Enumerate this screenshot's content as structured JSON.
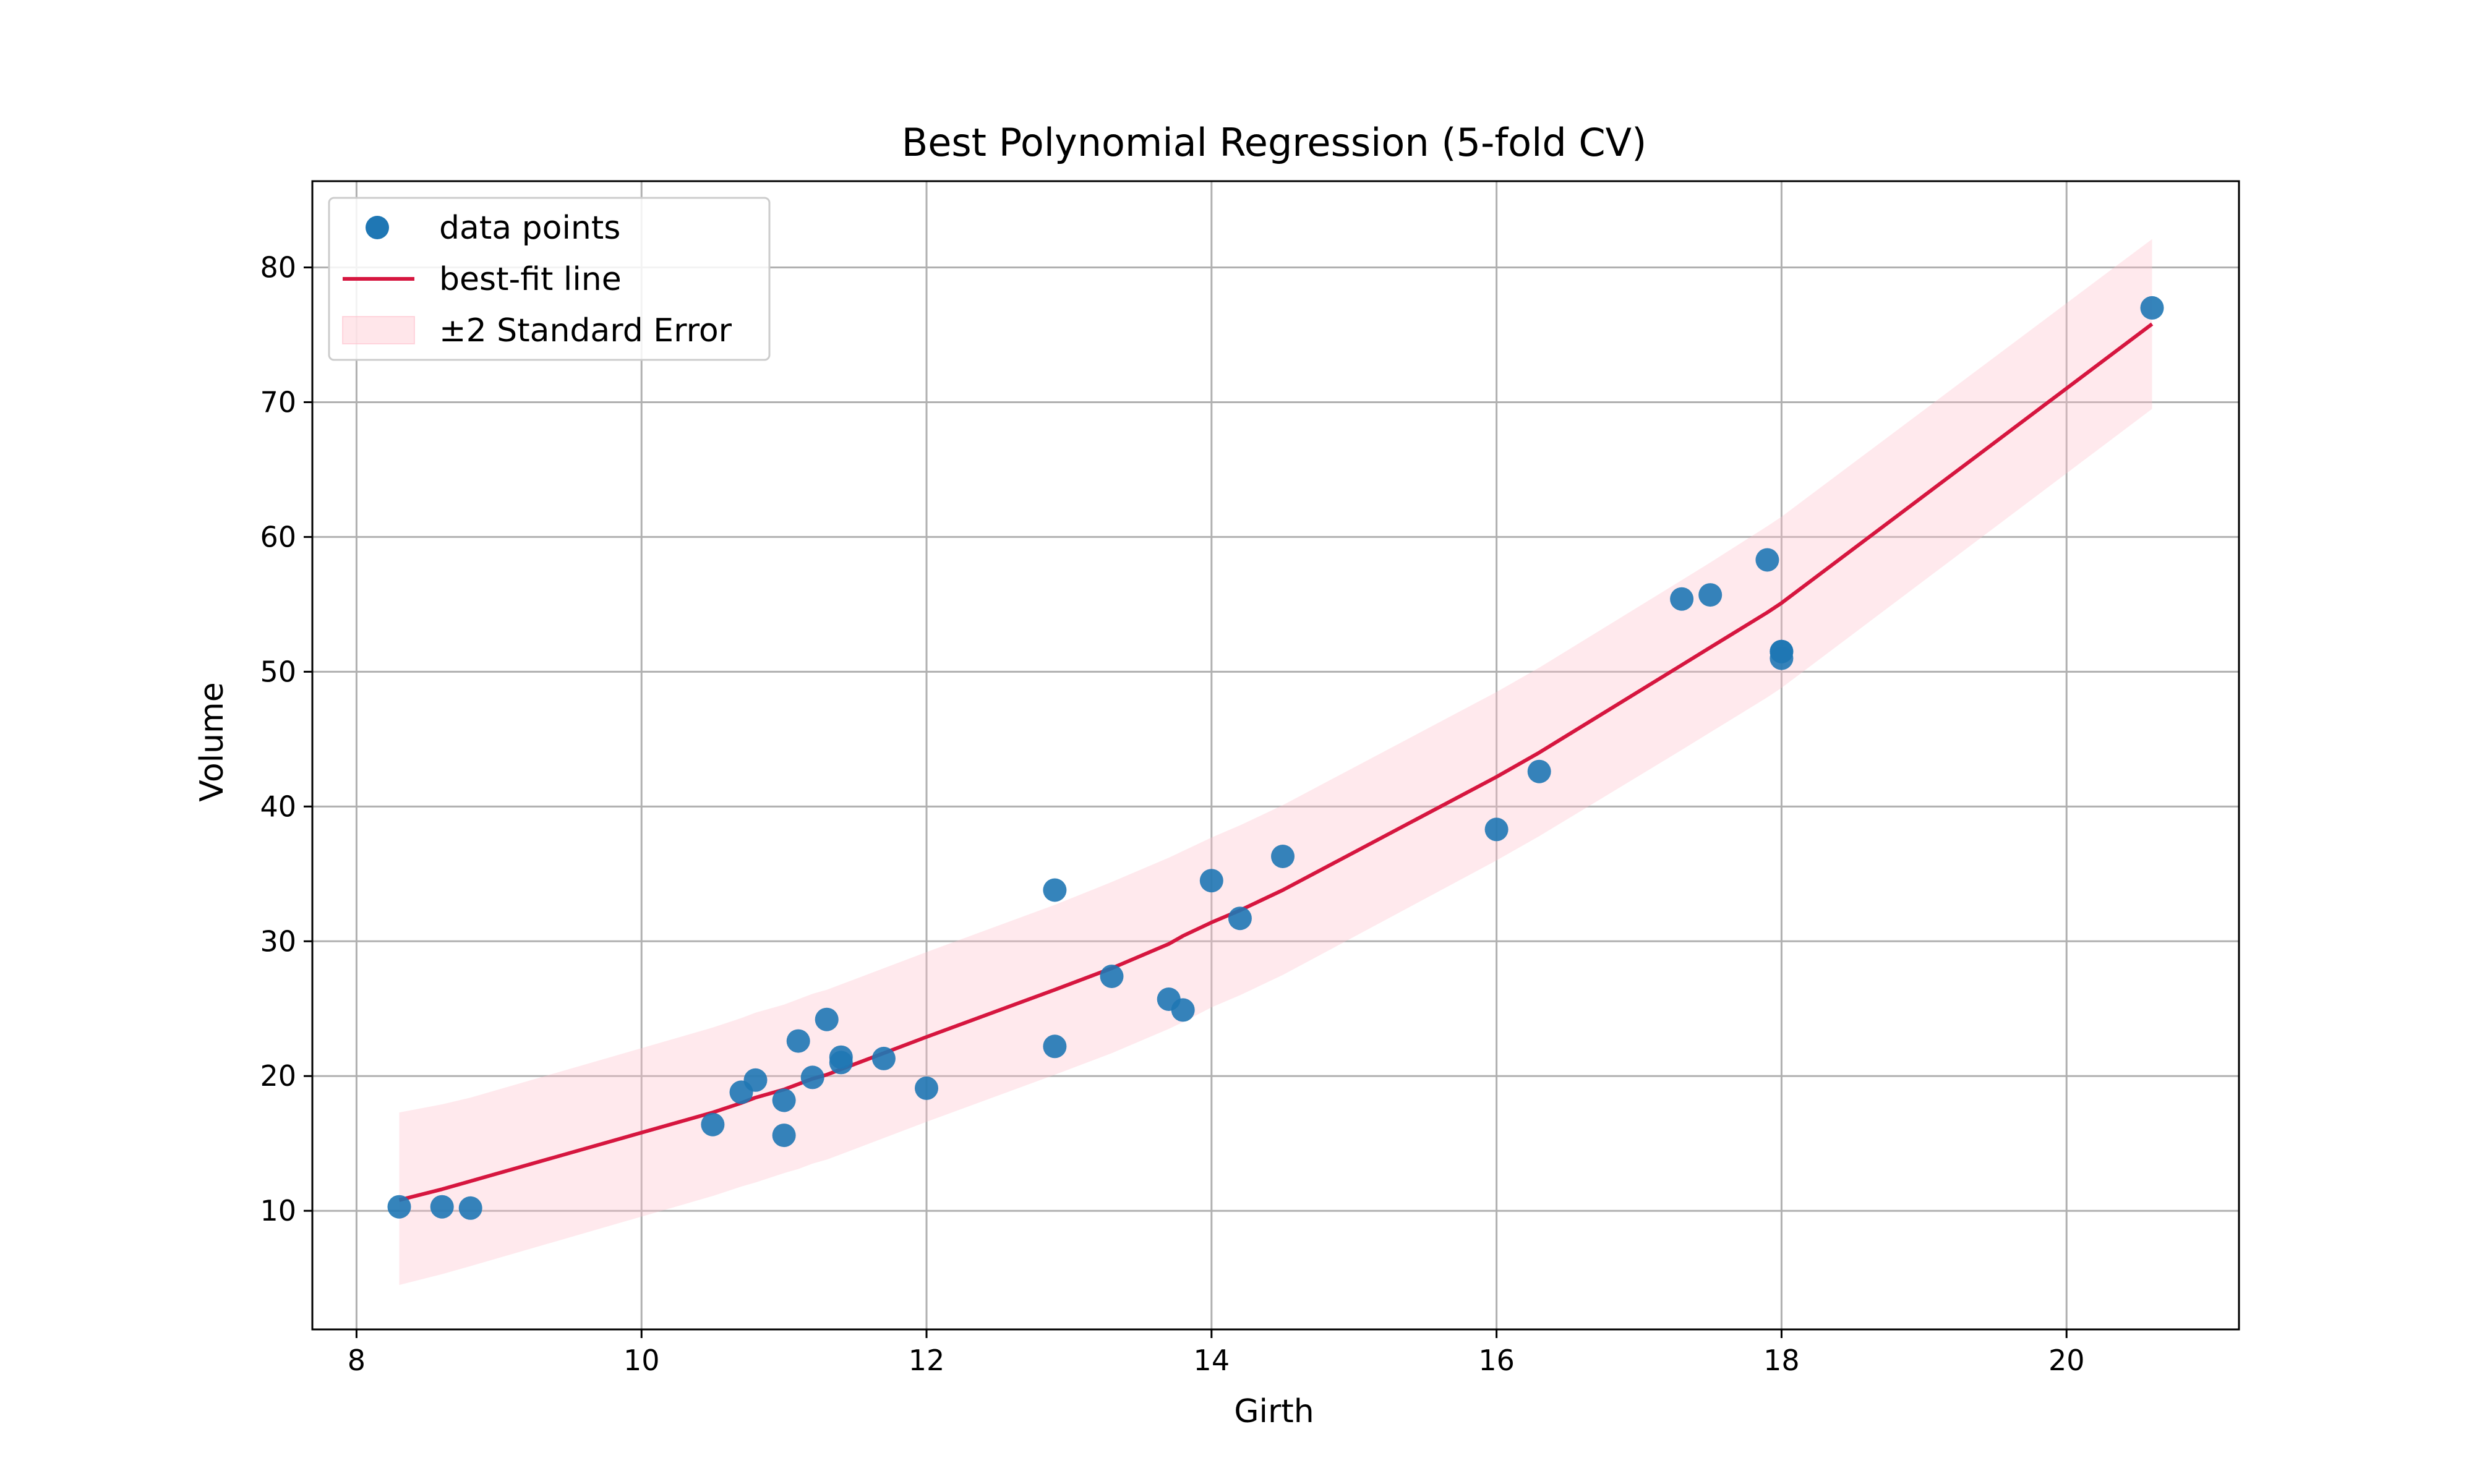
{
  "chart_data": {
    "type": "scatter",
    "title": "Best Polynomial Regression (5-fold CV)",
    "xlabel": "Girth",
    "ylabel": "Volume",
    "xlim": [
      7.69,
      21.21
    ],
    "ylim": [
      1.2,
      86.4
    ],
    "xticks": [
      8,
      10,
      12,
      14,
      16,
      18,
      20
    ],
    "yticks": [
      10,
      20,
      30,
      40,
      50,
      60,
      70,
      80
    ],
    "grid": true,
    "legend_position": "top-left",
    "legend": [
      {
        "label": "data points",
        "kind": "marker",
        "color": "#1f77b4"
      },
      {
        "label": "best-fit line",
        "kind": "line",
        "color": "#d6163f"
      },
      {
        "label": "±2 Standard Error",
        "kind": "band",
        "color": "#ffc0cb"
      }
    ],
    "series": [
      {
        "name": "data points",
        "kind": "scatter",
        "color": "#1f77b4",
        "points": [
          [
            8.3,
            10.3
          ],
          [
            8.6,
            10.3
          ],
          [
            8.8,
            10.2
          ],
          [
            10.5,
            16.4
          ],
          [
            10.7,
            18.8
          ],
          [
            10.8,
            19.7
          ],
          [
            11.0,
            15.6
          ],
          [
            11.0,
            18.2
          ],
          [
            11.1,
            22.6
          ],
          [
            11.2,
            19.9
          ],
          [
            11.3,
            24.2
          ],
          [
            11.4,
            21.0
          ],
          [
            11.4,
            21.4
          ],
          [
            11.7,
            21.3
          ],
          [
            12.0,
            19.1
          ],
          [
            12.9,
            22.2
          ],
          [
            12.9,
            33.8
          ],
          [
            13.3,
            27.4
          ],
          [
            13.7,
            25.7
          ],
          [
            13.8,
            24.9
          ],
          [
            14.0,
            34.5
          ],
          [
            14.2,
            31.7
          ],
          [
            14.5,
            36.3
          ],
          [
            16.0,
            38.3
          ],
          [
            16.3,
            42.6
          ],
          [
            17.3,
            55.4
          ],
          [
            17.5,
            55.7
          ],
          [
            17.9,
            58.3
          ],
          [
            18.0,
            51.5
          ],
          [
            18.0,
            51.0
          ],
          [
            18.0,
            51.5
          ],
          [
            20.6,
            77.0
          ]
        ]
      },
      {
        "name": "best-fit line",
        "kind": "line",
        "color": "#d6163f",
        "x": [
          8.3,
          8.6,
          8.8,
          10.5,
          10.7,
          10.8,
          11.0,
          11.1,
          11.2,
          11.3,
          11.4,
          11.7,
          12.0,
          12.9,
          13.3,
          13.7,
          13.8,
          14.0,
          14.2,
          14.5,
          16.0,
          16.3,
          17.3,
          17.5,
          17.9,
          18.0,
          20.6
        ],
        "y": [
          10.8,
          11.6,
          12.2,
          17.3,
          18.0,
          18.4,
          19.0,
          19.4,
          19.8,
          20.1,
          20.5,
          21.7,
          22.9,
          26.4,
          28.0,
          29.8,
          30.4,
          31.4,
          32.3,
          33.8,
          42.2,
          44.0,
          50.5,
          51.8,
          54.4,
          55.1,
          75.8
        ]
      },
      {
        "name": "±2 Standard Error",
        "kind": "band",
        "color": "#ffc0cb",
        "x": [
          8.3,
          8.6,
          8.8,
          10.5,
          10.7,
          10.8,
          11.0,
          11.1,
          11.2,
          11.3,
          11.4,
          11.7,
          12.0,
          12.9,
          13.3,
          13.7,
          13.8,
          14.0,
          14.2,
          14.5,
          16.0,
          16.3,
          17.3,
          17.5,
          17.9,
          18.0,
          20.6
        ],
        "lower": [
          4.5,
          5.3,
          5.9,
          11.1,
          11.8,
          12.1,
          12.8,
          13.1,
          13.5,
          13.8,
          14.2,
          15.4,
          16.6,
          20.1,
          21.7,
          23.5,
          24.0,
          25.1,
          26.0,
          27.5,
          36.0,
          37.8,
          44.2,
          45.5,
          48.1,
          48.8,
          69.5
        ],
        "upper": [
          17.3,
          17.9,
          18.4,
          23.6,
          24.3,
          24.7,
          25.3,
          25.7,
          26.1,
          26.4,
          26.8,
          28.0,
          29.2,
          32.7,
          34.4,
          36.2,
          36.7,
          37.7,
          38.6,
          40.1,
          48.5,
          50.3,
          56.8,
          58.1,
          60.8,
          61.5,
          82.1
        ]
      }
    ]
  }
}
